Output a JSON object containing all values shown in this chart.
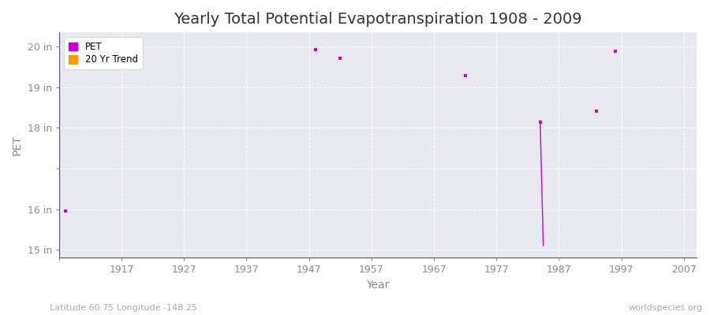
{
  "title": "Yearly Total Potential Evapotranspiration 1908 - 2009",
  "xlabel": "Year",
  "ylabel": "PET",
  "xlim": [
    1907,
    2009
  ],
  "ylim": [
    14.8,
    20.35
  ],
  "yticks": [
    15,
    16,
    17,
    18,
    19,
    20
  ],
  "ytick_labels": [
    "15 in",
    "16 in",
    "",
    "18 in",
    "19 in",
    "20 in"
  ],
  "xticks": [
    1907,
    1917,
    1927,
    1937,
    1947,
    1957,
    1967,
    1977,
    1987,
    1997,
    2007
  ],
  "xtick_labels": [
    "",
    "1917",
    "1927",
    "1937",
    "1947",
    "1957",
    "1967",
    "1977",
    "1987",
    "1997",
    "2007"
  ],
  "fig_bg_color": "#ffffff",
  "plot_bg_color": "#e8e8f0",
  "grid_color": "#ffffff",
  "pet_color": "#cc00cc",
  "trend_color": "#ff9900",
  "pet_points": [
    [
      1908,
      15.95
    ],
    [
      1948,
      19.93
    ],
    [
      1952,
      19.72
    ],
    [
      1972,
      19.28
    ],
    [
      1984,
      18.15
    ],
    [
      1993,
      18.42
    ],
    [
      1996,
      19.88
    ]
  ],
  "trend_line_x": [
    1984,
    1984.5
  ],
  "trend_line_y": [
    18.15,
    15.1
  ],
  "footnote_left": "Latitude 60.75 Longitude -148.25",
  "footnote_right": "worldspecies.org",
  "title_fontsize": 14,
  "axis_label_fontsize": 10,
  "tick_fontsize": 9,
  "footnote_fontsize": 8
}
